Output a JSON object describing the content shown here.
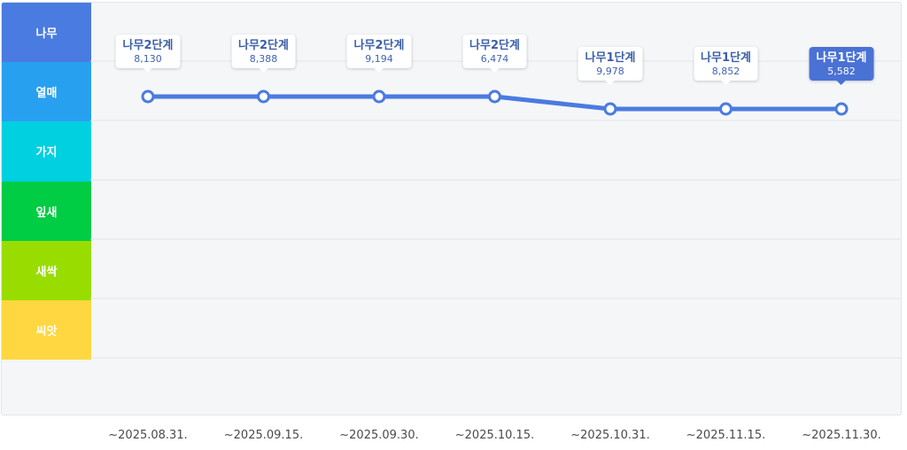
{
  "chart_data": {
    "type": "line",
    "levels": [
      {
        "label": "나무",
        "color": "#4a7be0"
      },
      {
        "label": "열매",
        "color": "#28a0f0"
      },
      {
        "label": "가지",
        "color": "#00d0e0"
      },
      {
        "label": "잎새",
        "color": "#00cc44"
      },
      {
        "label": "새싹",
        "color": "#99dd00"
      },
      {
        "label": "씨앗",
        "color": "#ffd740"
      }
    ],
    "categories": [
      "~2025.08.31.",
      "~2025.09.15.",
      "~2025.09.30.",
      "~2025.10.15.",
      "~2025.10.31.",
      "~2025.11.15.",
      "~2025.11.30."
    ],
    "series": [
      {
        "stages": [
          "나무2단계",
          "나무2단계",
          "나무2단계",
          "나무2단계",
          "나무1단계",
          "나무1단계",
          "나무1단계"
        ],
        "values": [
          8130,
          8388,
          9194,
          6474,
          9978,
          8852,
          5582
        ],
        "value_labels": [
          "8,130",
          "8,388",
          "9,194",
          "6,474",
          "9,978",
          "8,852",
          "5,582"
        ],
        "color": "#4a7be0"
      }
    ],
    "highlighted_index": 6,
    "grid": true
  }
}
